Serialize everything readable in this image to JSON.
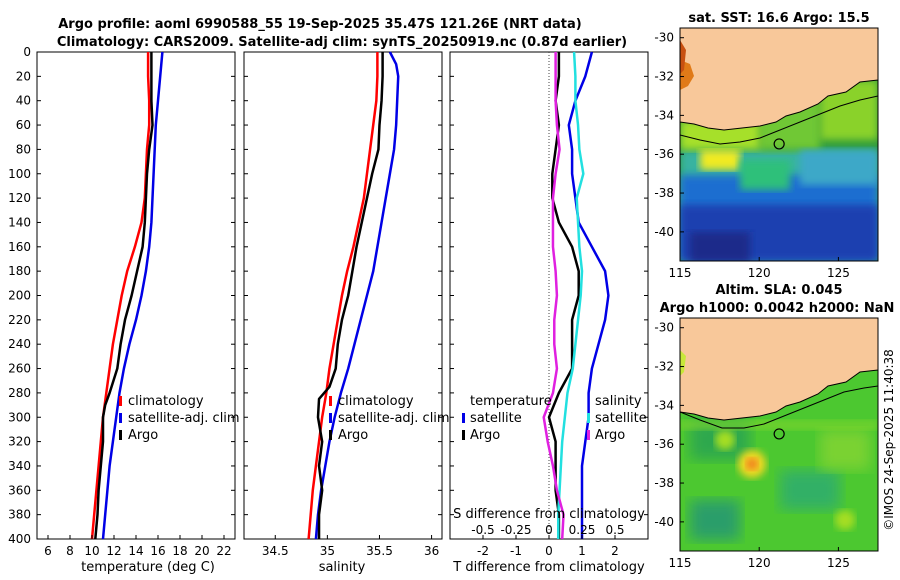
{
  "title": {
    "line1": "Argo profile: aoml 6990588_55 19-Sep-2025 35.47S 121.26E (NRT data)",
    "line2": "Climatology: CARS2009. Satellite-adj clim: synTS_20250919.nc (0.87d earlier)"
  },
  "colors": {
    "climatology": "#ff0000",
    "satellite": "#0000e6",
    "argo": "#000000",
    "salinity_sat": "#22e0e0",
    "salinity_argo": "#e020e0",
    "land": "#f8c89a"
  },
  "chart_data": [
    {
      "id": "temperature",
      "type": "line",
      "xlabel": "temperature (deg C)",
      "ylabel": "",
      "xlim": [
        5,
        23
      ],
      "ylim": [
        0,
        400
      ],
      "xticks": [
        "6",
        "8",
        "10",
        "12",
        "14",
        "16",
        "18",
        "20",
        "22"
      ],
      "yticks": [
        "0",
        "20",
        "40",
        "60",
        "80",
        "100",
        "120",
        "140",
        "160",
        "180",
        "200",
        "220",
        "240",
        "260",
        "280",
        "300",
        "320",
        "340",
        "360",
        "380",
        "400"
      ],
      "legend": [
        "climatology",
        "satellite-adj. clim",
        "Argo"
      ],
      "series": [
        {
          "name": "climatology",
          "depth": [
            0,
            20,
            40,
            60,
            80,
            100,
            120,
            140,
            160,
            180,
            200,
            220,
            240,
            260,
            280,
            300,
            320,
            340,
            360,
            380,
            400
          ],
          "values": [
            15.1,
            15.1,
            15.2,
            15.2,
            15.0,
            14.9,
            14.8,
            14.5,
            13.9,
            13.2,
            12.7,
            12.3,
            11.9,
            11.6,
            11.3,
            11.0,
            10.8,
            10.6,
            10.4,
            10.2,
            10.0
          ]
        },
        {
          "name": "satellite-adj. clim",
          "depth": [
            0,
            20,
            40,
            60,
            80,
            100,
            120,
            140,
            160,
            180,
            200,
            220,
            240,
            260,
            280,
            300,
            320,
            340,
            360,
            380,
            400
          ],
          "values": [
            16.4,
            16.2,
            16.0,
            15.8,
            15.7,
            15.6,
            15.5,
            15.4,
            15.2,
            14.9,
            14.5,
            14.0,
            13.4,
            12.9,
            12.5,
            12.2,
            11.9,
            11.6,
            11.4,
            11.2,
            11.0
          ]
        },
        {
          "name": "Argo",
          "depth": [
            0,
            20,
            40,
            60,
            80,
            100,
            120,
            140,
            160,
            180,
            200,
            220,
            240,
            260,
            280,
            290,
            300,
            320,
            340,
            360,
            380,
            400
          ],
          "values": [
            15.4,
            15.4,
            15.4,
            15.5,
            15.2,
            15.0,
            14.9,
            14.8,
            14.6,
            14.1,
            13.6,
            13.0,
            12.6,
            12.3,
            11.6,
            11.2,
            11.0,
            11.0,
            10.8,
            10.6,
            10.5,
            10.3
          ]
        }
      ]
    },
    {
      "id": "salinity",
      "type": "line",
      "xlabel": "salinity",
      "xlim": [
        34.2,
        36.1
      ],
      "ylim": [
        0,
        400
      ],
      "xticks": [
        "34.5",
        "35",
        "35.5",
        "36"
      ],
      "legend": [
        "climatology",
        "satellite-adj. clim",
        "Argo"
      ],
      "series": [
        {
          "name": "climatology",
          "depth": [
            0,
            20,
            40,
            60,
            80,
            100,
            120,
            140,
            160,
            180,
            200,
            220,
            240,
            260,
            280,
            300,
            320,
            340,
            360,
            380,
            400
          ],
          "values": [
            35.48,
            35.48,
            35.47,
            35.44,
            35.41,
            35.38,
            35.35,
            35.3,
            35.25,
            35.19,
            35.14,
            35.1,
            35.06,
            35.02,
            34.99,
            34.95,
            34.92,
            34.89,
            34.86,
            34.84,
            34.82
          ]
        },
        {
          "name": "satellite-adj. clim",
          "depth": [
            0,
            10,
            20,
            40,
            60,
            80,
            100,
            120,
            140,
            160,
            180,
            200,
            220,
            240,
            260,
            280,
            300,
            320,
            340,
            360,
            380,
            400
          ],
          "values": [
            35.6,
            35.66,
            35.68,
            35.67,
            35.66,
            35.64,
            35.6,
            35.56,
            35.52,
            35.48,
            35.44,
            35.38,
            35.32,
            35.26,
            35.2,
            35.13,
            35.07,
            35.02,
            34.98,
            34.94,
            34.91,
            34.89
          ]
        },
        {
          "name": "Argo",
          "depth": [
            0,
            20,
            40,
            60,
            80,
            100,
            120,
            140,
            160,
            180,
            200,
            220,
            240,
            260,
            275,
            285,
            300,
            320,
            340,
            360,
            380,
            400
          ],
          "values": [
            35.53,
            35.53,
            35.52,
            35.5,
            35.49,
            35.43,
            35.38,
            35.33,
            35.28,
            35.24,
            35.2,
            35.14,
            35.1,
            35.08,
            35.02,
            34.92,
            34.91,
            34.95,
            34.92,
            34.95,
            34.92,
            34.92
          ]
        }
      ]
    },
    {
      "id": "difference",
      "type": "line",
      "xlabel": "T difference from climatology",
      "xlabel_top": "S difference from climatology",
      "xlim": [
        -3,
        3
      ],
      "ylim": [
        0,
        400
      ],
      "xticks": [
        "-2",
        "-1",
        "0",
        "1",
        "2"
      ],
      "xticks_top": [
        "-0.5",
        "-0.25",
        "0",
        "0.25",
        "0.5"
      ],
      "legend_left": [
        "temperature",
        "satellite",
        "Argo"
      ],
      "legend_right": [
        "salinity",
        "satellite",
        "Argo"
      ],
      "series": [
        {
          "name": "temperature satellite",
          "depth": [
            0,
            20,
            40,
            60,
            80,
            100,
            120,
            140,
            160,
            180,
            200,
            220,
            240,
            260,
            280,
            300,
            320,
            340,
            360,
            380,
            400
          ],
          "values": [
            1.3,
            1.1,
            0.8,
            0.6,
            0.7,
            0.7,
            0.8,
            0.9,
            1.3,
            1.7,
            1.8,
            1.7,
            1.5,
            1.3,
            1.2,
            1.2,
            1.1,
            1.0,
            1.0,
            1.0,
            1.0
          ]
        },
        {
          "name": "temperature Argo",
          "depth": [
            0,
            20,
            40,
            60,
            80,
            100,
            120,
            140,
            160,
            180,
            200,
            220,
            240,
            260,
            280,
            300,
            320,
            340,
            360,
            380,
            400
          ],
          "values": [
            0.3,
            0.3,
            0.2,
            0.3,
            0.2,
            0.1,
            0.1,
            0.3,
            0.7,
            0.9,
            0.9,
            0.7,
            0.7,
            0.7,
            0.3,
            0.0,
            0.2,
            0.2,
            0.2,
            0.3,
            0.3
          ]
        },
        {
          "name": "salinity satellite",
          "depth": [
            0,
            20,
            40,
            60,
            80,
            100,
            120,
            140,
            160,
            180,
            200,
            220,
            240,
            260,
            280,
            300,
            320,
            340,
            360,
            380,
            400
          ],
          "values": [
            0.19,
            0.2,
            0.2,
            0.22,
            0.23,
            0.26,
            0.21,
            0.22,
            0.23,
            0.25,
            0.24,
            0.22,
            0.2,
            0.18,
            0.14,
            0.12,
            0.1,
            0.09,
            0.08,
            0.07,
            0.07
          ]
        },
        {
          "name": "salinity Argo",
          "depth": [
            0,
            20,
            40,
            60,
            80,
            100,
            120,
            140,
            160,
            180,
            200,
            220,
            240,
            260,
            280,
            300,
            320,
            340,
            360,
            380,
            400
          ],
          "values": [
            0.05,
            0.05,
            0.05,
            0.06,
            0.08,
            0.05,
            0.03,
            0.03,
            0.03,
            0.05,
            0.06,
            0.04,
            0.04,
            0.06,
            0.03,
            -0.04,
            -0.01,
            0.03,
            0.06,
            0.11,
            0.1
          ]
        }
      ]
    }
  ],
  "maps": {
    "top_title": "sat. SST: 16.6 Argo: 15.5",
    "bottom_title_line1": "Altim. SLA: 0.045",
    "bottom_title_line2": "Argo h1000: 0.0042 h2000: NaN",
    "yticks": [
      "-30",
      "-32",
      "-34",
      "-36",
      "-38",
      "-40"
    ],
    "xticks": [
      "115",
      "120",
      "125"
    ],
    "lon_range": [
      115,
      127.5
    ],
    "lat_range": [
      -41.5,
      -29.5
    ],
    "argo_lon": 121.26,
    "argo_lat": -35.47
  },
  "timestamp": "©IMOS 24-Sep-2025 11:40:38"
}
